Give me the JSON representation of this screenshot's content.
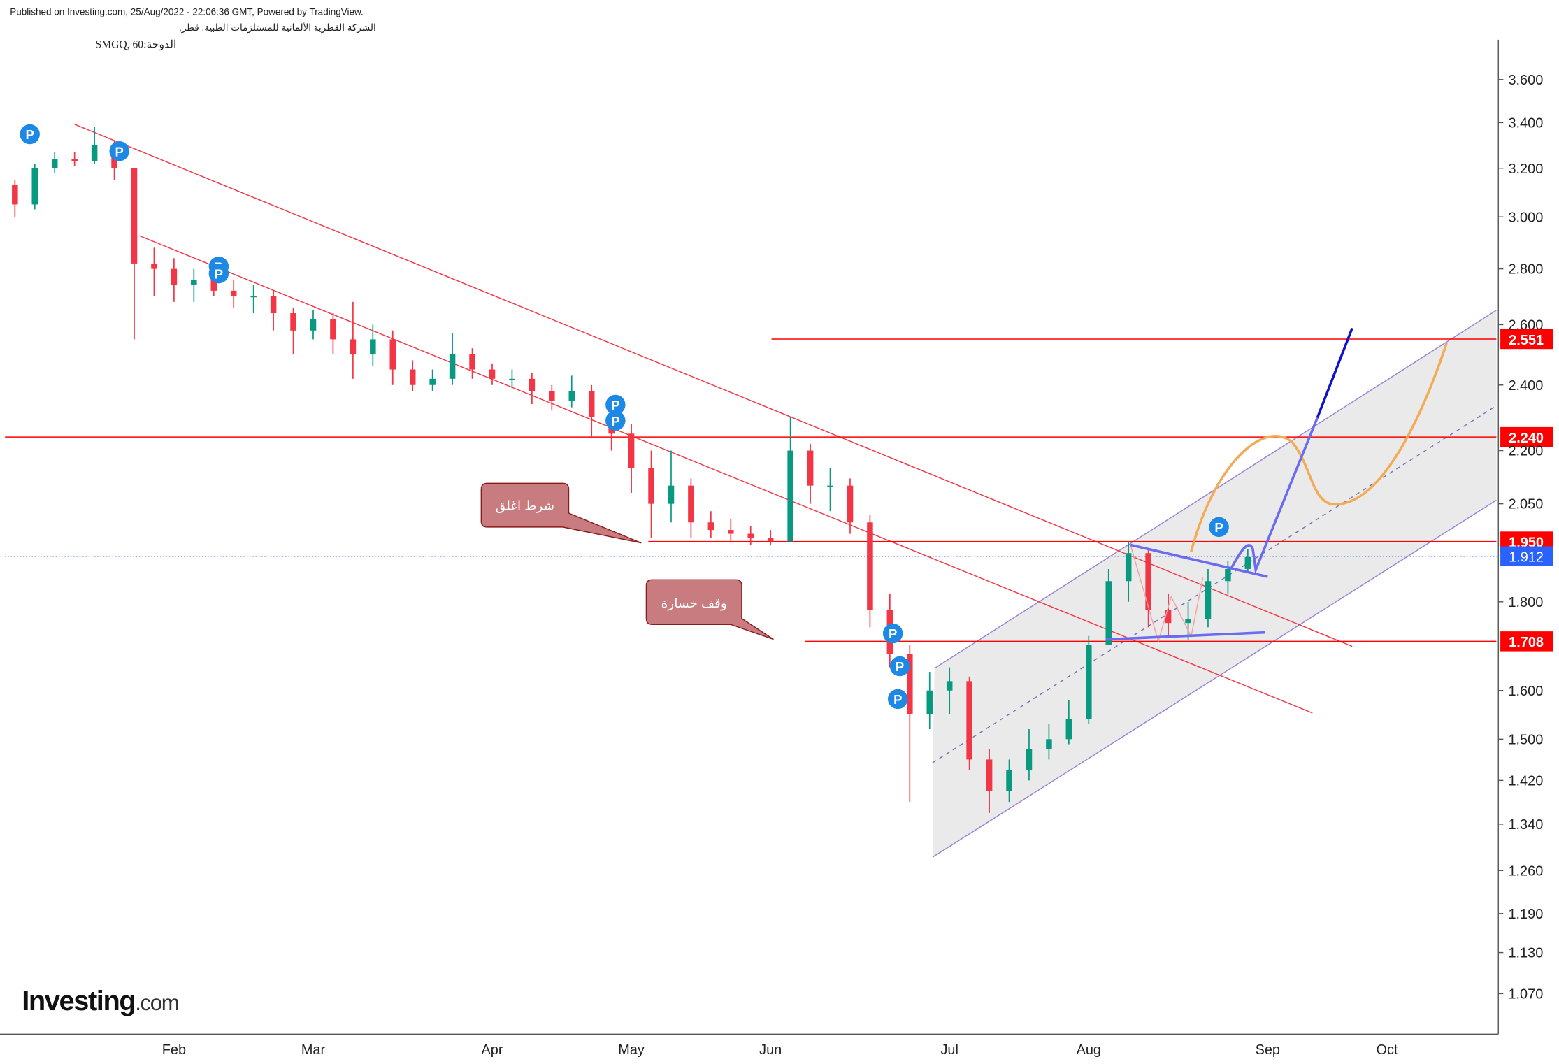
{
  "header": {
    "published": "Published on Investing.com, 25/Aug/2022 - 22:06:36 GMT, Powered by TradingView.",
    "company": "الشركة القطرية الألمانية للمستلزمات الطبية, قطر,",
    "symbol": "الدوحة:SMGQ, 60"
  },
  "logo": {
    "main": "Investing",
    "suffix": ".com"
  },
  "annotations": {
    "close_condition": "شرط اغلق",
    "stop_loss": "وقف خسارة",
    "marker": "P"
  },
  "chart_data": {
    "type": "candlestick",
    "log_scale": true,
    "up_color": "#089981",
    "down_color": "#f23645",
    "categories": [
      null,
      null,
      null,
      null,
      null,
      null,
      null,
      null,
      "Feb",
      null,
      null,
      null,
      null,
      null,
      null,
      "Mar",
      null,
      null,
      null,
      null,
      null,
      null,
      null,
      null,
      "Apr",
      null,
      null,
      null,
      null,
      null,
      null,
      "May",
      null,
      null,
      null,
      null,
      null,
      null,
      "Jun",
      null,
      null,
      null,
      null,
      null,
      null,
      null,
      null,
      "Jul",
      null,
      null,
      null,
      null,
      null,
      null,
      "Aug",
      null,
      null,
      null,
      null,
      null,
      null,
      null,
      null,
      "Sep",
      null,
      null,
      null,
      null,
      null,
      "Oct",
      null,
      null,
      null,
      null,
      null
    ],
    "ohlc": [
      [
        3.13,
        3.15,
        3.0,
        3.05
      ],
      [
        3.05,
        3.22,
        3.03,
        3.2
      ],
      [
        3.2,
        3.27,
        3.18,
        3.24
      ],
      [
        3.24,
        3.27,
        3.21,
        3.23
      ],
      [
        3.23,
        3.38,
        3.22,
        3.3
      ],
      [
        3.3,
        3.32,
        3.15,
        3.2
      ],
      [
        3.2,
        3.2,
        2.55,
        2.82
      ],
      [
        2.82,
        2.88,
        2.7,
        2.8
      ],
      [
        2.8,
        2.84,
        2.68,
        2.74
      ],
      [
        2.74,
        2.8,
        2.68,
        2.76
      ],
      [
        2.76,
        2.82,
        2.7,
        2.72
      ],
      [
        2.72,
        2.76,
        2.66,
        2.7
      ],
      [
        2.7,
        2.74,
        2.64,
        2.7
      ],
      [
        2.7,
        2.72,
        2.58,
        2.64
      ],
      [
        2.64,
        2.66,
        2.5,
        2.58
      ],
      [
        2.58,
        2.65,
        2.55,
        2.62
      ],
      [
        2.62,
        2.64,
        2.5,
        2.55
      ],
      [
        2.55,
        2.68,
        2.42,
        2.5
      ],
      [
        2.5,
        2.6,
        2.46,
        2.55
      ],
      [
        2.55,
        2.58,
        2.4,
        2.45
      ],
      [
        2.45,
        2.48,
        2.38,
        2.4
      ],
      [
        2.4,
        2.45,
        2.38,
        2.42
      ],
      [
        2.42,
        2.57,
        2.4,
        2.5
      ],
      [
        2.5,
        2.52,
        2.42,
        2.45
      ],
      [
        2.45,
        2.47,
        2.4,
        2.42
      ],
      [
        2.42,
        2.45,
        2.39,
        2.42
      ],
      [
        2.42,
        2.44,
        2.34,
        2.38
      ],
      [
        2.38,
        2.4,
        2.32,
        2.35
      ],
      [
        2.35,
        2.43,
        2.33,
        2.38
      ],
      [
        2.38,
        2.4,
        2.24,
        2.3
      ],
      [
        2.3,
        2.33,
        2.2,
        2.25
      ],
      [
        2.25,
        2.28,
        2.08,
        2.15
      ],
      [
        2.15,
        2.2,
        1.96,
        2.05
      ],
      [
        2.05,
        2.2,
        2.0,
        2.1
      ],
      [
        2.1,
        2.12,
        1.96,
        2.0
      ],
      [
        2.0,
        2.03,
        1.96,
        1.98
      ],
      [
        1.98,
        2.01,
        1.95,
        1.97
      ],
      [
        1.97,
        1.99,
        1.94,
        1.96
      ],
      [
        1.96,
        1.98,
        1.94,
        1.95
      ],
      [
        1.95,
        2.3,
        1.95,
        2.2
      ],
      [
        2.2,
        2.22,
        2.05,
        2.1
      ],
      [
        2.1,
        2.15,
        2.03,
        2.1
      ],
      [
        2.1,
        2.12,
        1.97,
        2.0
      ],
      [
        2.0,
        2.02,
        1.74,
        1.78
      ],
      [
        1.78,
        1.82,
        1.65,
        1.68
      ],
      [
        1.68,
        1.7,
        1.38,
        1.55
      ],
      [
        1.55,
        1.64,
        1.52,
        1.6
      ],
      [
        1.6,
        1.65,
        1.55,
        1.62
      ],
      [
        1.62,
        1.63,
        1.44,
        1.46
      ],
      [
        1.46,
        1.48,
        1.36,
        1.4
      ],
      [
        1.4,
        1.46,
        1.38,
        1.44
      ],
      [
        1.44,
        1.52,
        1.42,
        1.48
      ],
      [
        1.48,
        1.53,
        1.46,
        1.5
      ],
      [
        1.5,
        1.58,
        1.49,
        1.54
      ],
      [
        1.54,
        1.72,
        1.53,
        1.7
      ],
      [
        1.7,
        1.88,
        1.7,
        1.85
      ],
      [
        1.85,
        1.95,
        1.8,
        1.92
      ],
      [
        1.92,
        1.93,
        1.74,
        1.78
      ],
      [
        1.78,
        1.82,
        1.72,
        1.75
      ],
      [
        1.75,
        1.8,
        1.71,
        1.76
      ],
      [
        1.76,
        1.88,
        1.74,
        1.85
      ],
      [
        1.85,
        1.9,
        1.82,
        1.88
      ],
      [
        1.88,
        1.93,
        1.87,
        1.91
      ],
      null,
      null,
      null,
      null,
      null,
      null,
      null,
      null,
      null,
      null,
      null,
      null
    ],
    "ylim": [
      1.014,
      3.795
    ],
    "yticks": [
      {
        "value": 1.07,
        "label": "1.070"
      },
      {
        "value": 1.13,
        "label": "1.130"
      },
      {
        "value": 1.19,
        "label": "1.190"
      },
      {
        "value": 1.26,
        "label": "1.260"
      },
      {
        "value": 1.34,
        "label": "1.340"
      },
      {
        "value": 1.42,
        "label": "1.420"
      },
      {
        "value": 1.5,
        "label": "1.500"
      },
      {
        "value": 1.6,
        "label": "1.600"
      },
      {
        "value": 1.8,
        "label": "1.800"
      },
      {
        "value": 2.05,
        "label": "2.050"
      },
      {
        "value": 2.2,
        "label": "2.200"
      },
      {
        "value": 2.4,
        "label": "2.400"
      },
      {
        "value": 2.6,
        "label": "2.600"
      },
      {
        "value": 2.8,
        "label": "2.800"
      },
      {
        "value": 3.0,
        "label": "3.000"
      },
      {
        "value": 3.2,
        "label": "3.200"
      },
      {
        "value": 3.4,
        "label": "3.400"
      },
      {
        "value": 3.6,
        "label": "3.600"
      }
    ],
    "levels": [
      2.551,
      {
        "value": 2.24,
        "label": "2.240"
      },
      {
        "value": 1.95,
        "label": "1.950"
      },
      1.708
    ],
    "last_price": 1.912,
    "level_color": "#ff0000",
    "last_price_color": "#2962ff"
  }
}
